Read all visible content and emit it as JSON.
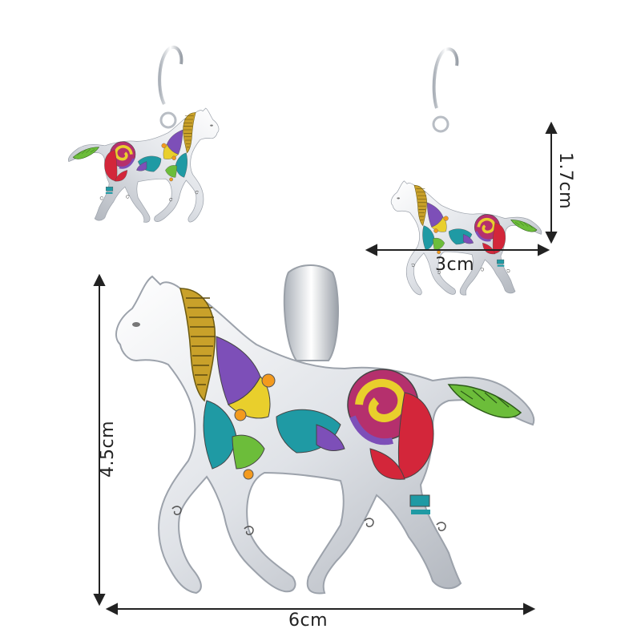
{
  "image": {
    "description_subject": "horse-enamel-jewelry-set",
    "dimensions": {
      "earring_height": "1.7cm",
      "earring_width": "3cm",
      "pendant_height": "4.5cm",
      "pendant_width": "6cm"
    },
    "colors": {
      "silver": "#e6e8ec",
      "silver_shadow": "#b7bcc4",
      "red": "#d3263a",
      "orange": "#f39a1e",
      "yellow": "#e9cf2c",
      "green": "#6cbd3a",
      "teal": "#1f9aa4",
      "purple": "#7d4fb8",
      "magenta": "#b5306d",
      "arrow": "#222222"
    }
  }
}
